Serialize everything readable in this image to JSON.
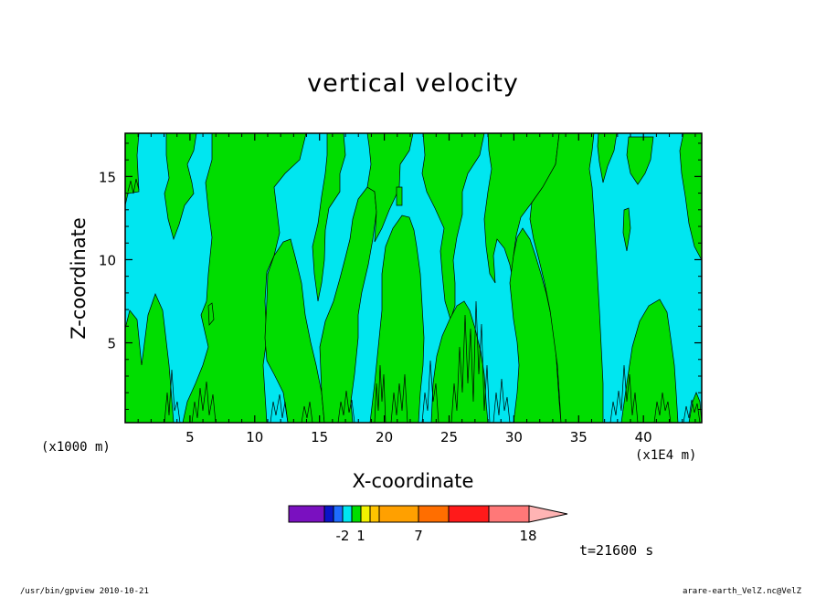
{
  "chart_data": {
    "type": "heatmap",
    "title": "vertical velocity",
    "xlabel": "X-coordinate",
    "ylabel": "Z-coordinate",
    "x_unit": "(x1000 m)",
    "x_scale_note": "(x1E4 m)",
    "xlim": [
      0,
      44.5
    ],
    "ylim": [
      0.2,
      17.6
    ],
    "x_ticks": [
      "5",
      "10",
      "15",
      "20",
      "25",
      "30",
      "35",
      "40"
    ],
    "y_ticks": [
      "5",
      "10",
      "15"
    ],
    "time_label": "t=21600 s",
    "colorbar": {
      "orientation": "horizontal",
      "extend": "max",
      "tick_labels": [
        "-2",
        "1",
        "7",
        "18"
      ],
      "colors": [
        "#7a10c0",
        "#0a14c8",
        "#1e6cff",
        "#00e6f0",
        "#00dd00",
        "#f2f200",
        "#ffc400",
        "#ffa000",
        "#ff6e00",
        "#ff1a1a",
        "#ff7878",
        "#ffb4b4"
      ]
    },
    "fill_colors": {
      "background": "#00e6f0",
      "positive": "#00dd00"
    },
    "positive_regions": [
      {
        "x": [
          0,
          2
        ],
        "z_top": 17.6
      },
      {
        "x": [
          0,
          3
        ],
        "z_top": 7
      },
      {
        "x": [
          3,
          6
        ],
        "z_top": 17.6
      },
      {
        "x": [
          6,
          13
        ],
        "z_top": 17.6
      },
      {
        "x": [
          16,
          18
        ],
        "z_top": 17.6
      },
      {
        "x": [
          17,
          21
        ],
        "z_top": 13
      },
      {
        "x": [
          19,
          23.5
        ],
        "z_top": 17.6
      },
      {
        "x": [
          23,
          26
        ],
        "z_top": 17.6
      },
      {
        "x": [
          26.5,
          29
        ],
        "z_top": 9
      },
      {
        "x": [
          28,
          37
        ],
        "z_top": 17.6
      },
      {
        "x": [
          32,
          38
        ],
        "z_top": 17.6
      },
      {
        "x": [
          38.5,
          43
        ],
        "z_top": 7.5
      },
      {
        "x": [
          43,
          44.5
        ],
        "z_top": 16
      }
    ]
  },
  "footer": {
    "left": "/usr/bin/gpview   2010-10-21",
    "right": "arare-earth_VelZ.nc@VelZ"
  }
}
